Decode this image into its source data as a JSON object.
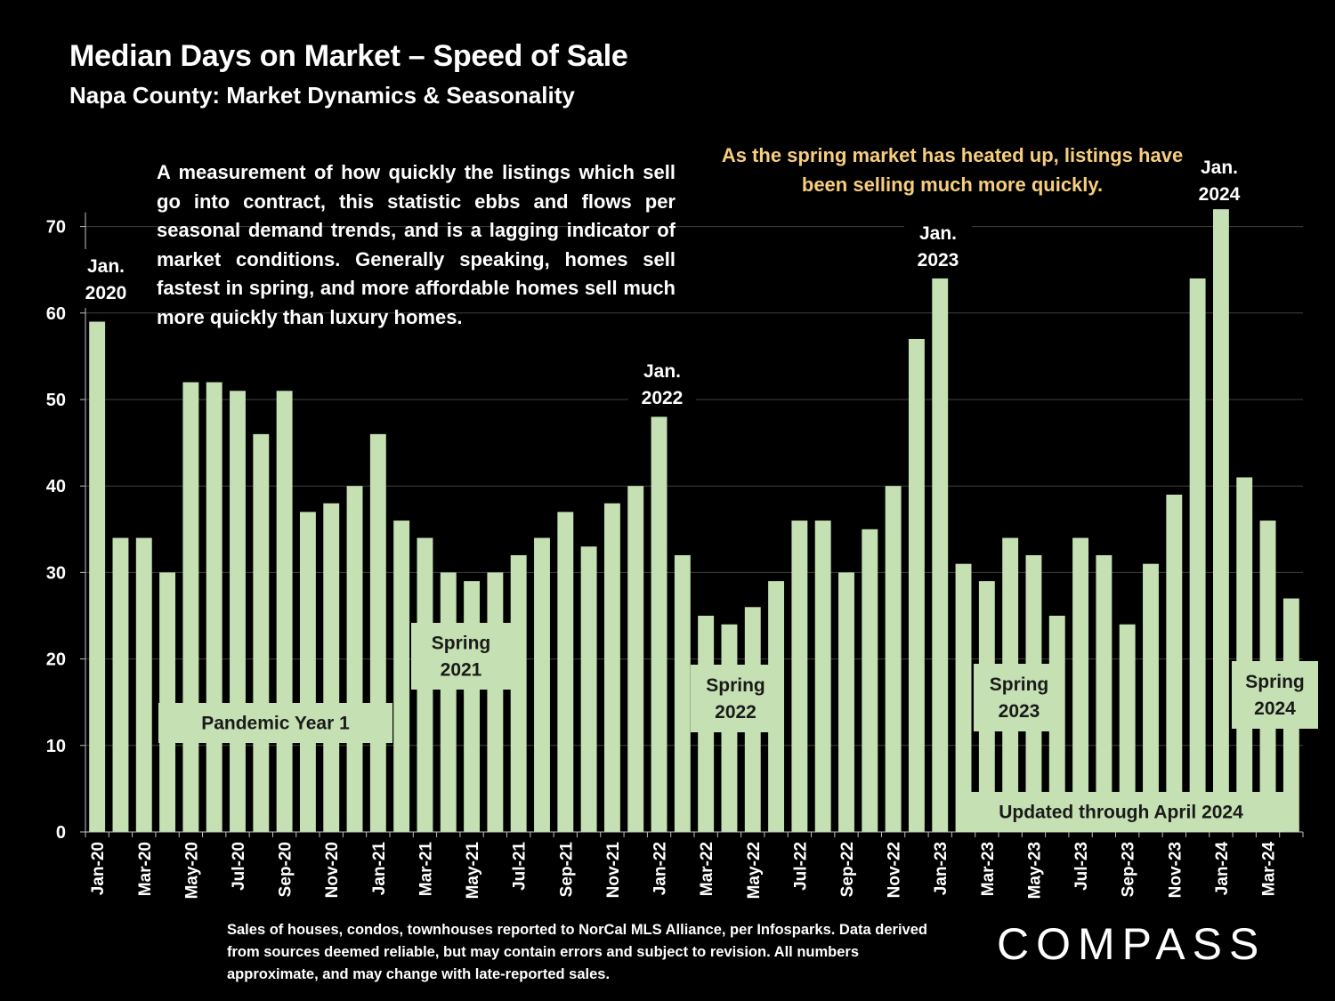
{
  "title": "Median Days on Market – Speed of Sale",
  "subtitle": "Napa County: Market Dynamics & Seasonality",
  "description": "A measurement of how quickly the listings which sell go into contract, this statistic ebbs and flows per seasonal demand trends, and is a lagging indicator of market conditions. Generally speaking, homes sell fastest in spring, and more affordable homes sell much more quickly than luxury homes.",
  "note": "As the spring market has heated up, listings have been selling much more quickly.",
  "footnote": "Sales of houses, condos, townhouses reported to NorCal MLS Alliance, per Infosparks. Data derived from sources deemed reliable, but may contain errors and subject to revision. All numbers approximate, and may change with late-reported sales.",
  "logo": "COMPASS",
  "colors": {
    "bar": "#c5e0b3",
    "background": "#000000",
    "note": "#f7ce7d",
    "grid": "#404040",
    "text": "#ffffff"
  },
  "chart_data": {
    "type": "bar",
    "title": "Median Days on Market – Speed of Sale",
    "subtitle": "Napa County: Market Dynamics & Seasonality",
    "xlabel": "",
    "ylabel": "",
    "ylim": [
      0,
      70
    ],
    "yticks": [
      0,
      10,
      20,
      30,
      40,
      50,
      60,
      70
    ],
    "grid": true,
    "legend": "none",
    "categories": [
      "Jan-20",
      "Feb-20",
      "Mar-20",
      "Apr-20",
      "May-20",
      "Jun-20",
      "Jul-20",
      "Aug-20",
      "Sep-20",
      "Oct-20",
      "Nov-20",
      "Dec-20",
      "Jan-21",
      "Feb-21",
      "Mar-21",
      "Apr-21",
      "May-21",
      "Jun-21",
      "Jul-21",
      "Aug-21",
      "Sep-21",
      "Oct-21",
      "Nov-21",
      "Dec-21",
      "Jan-22",
      "Feb-22",
      "Mar-22",
      "Apr-22",
      "May-22",
      "Jun-22",
      "Jul-22",
      "Aug-22",
      "Sep-22",
      "Oct-22",
      "Nov-22",
      "Dec-22",
      "Jan-23",
      "Feb-23",
      "Mar-23",
      "Apr-23",
      "May-23",
      "Jun-23",
      "Jul-23",
      "Aug-23",
      "Sep-23",
      "Oct-23",
      "Nov-23",
      "Dec-23",
      "Jan-24",
      "Feb-24",
      "Mar-24",
      "Apr-24"
    ],
    "tick_labels": [
      "Jan-20",
      "Mar-20",
      "May-20",
      "Jul-20",
      "Sep-20",
      "Nov-20",
      "Jan-21",
      "Mar-21",
      "May-21",
      "Jul-21",
      "Sep-21",
      "Nov-21",
      "Jan-22",
      "Mar-22",
      "May-22",
      "Jul-22",
      "Sep-22",
      "Nov-22",
      "Jan-23",
      "Mar-23",
      "May-23",
      "Jul-23",
      "Sep-23",
      "Nov-23",
      "Jan-24",
      "Mar-24"
    ],
    "values": [
      59,
      34,
      34,
      30,
      52,
      52,
      51,
      46,
      51,
      37,
      38,
      40,
      46,
      36,
      34,
      30,
      29,
      30,
      32,
      34,
      37,
      33,
      38,
      40,
      48,
      32,
      25,
      24,
      26,
      29,
      36,
      36,
      30,
      35,
      40,
      57,
      64,
      31,
      29,
      34,
      32,
      25,
      34,
      32,
      24,
      31,
      39,
      64,
      72,
      41,
      36,
      27
    ],
    "annotations": [
      {
        "text": "Jan. 2020",
        "lines": [
          "Jan.",
          "2020"
        ],
        "category": "Jan-20",
        "box": false
      },
      {
        "text": "Jan. 2022",
        "lines": [
          "Jan.",
          "2022"
        ],
        "category": "Jan-22",
        "box": false
      },
      {
        "text": "Jan. 2023",
        "lines": [
          "Jan.",
          "2023"
        ],
        "category": "Jan-23",
        "box": false
      },
      {
        "text": "Jan. 2024",
        "lines": [
          "Jan.",
          "2024"
        ],
        "category": "Jan-24",
        "box": false
      },
      {
        "text": "Pandemic Year 1",
        "lines": [
          "Pandemic Year 1"
        ],
        "box": true
      },
      {
        "text": "Spring 2021",
        "lines": [
          "Spring",
          "2021"
        ],
        "box": true
      },
      {
        "text": "Spring 2022",
        "lines": [
          "Spring",
          "2022"
        ],
        "box": true
      },
      {
        "text": "Spring 2023",
        "lines": [
          "Spring",
          "2023"
        ],
        "box": true
      },
      {
        "text": "Spring 2024",
        "lines": [
          "Spring",
          "2024"
        ],
        "box": true
      },
      {
        "text": "Updated through April 2024",
        "lines": [
          "Updated through April 2024"
        ],
        "box": true
      }
    ]
  }
}
